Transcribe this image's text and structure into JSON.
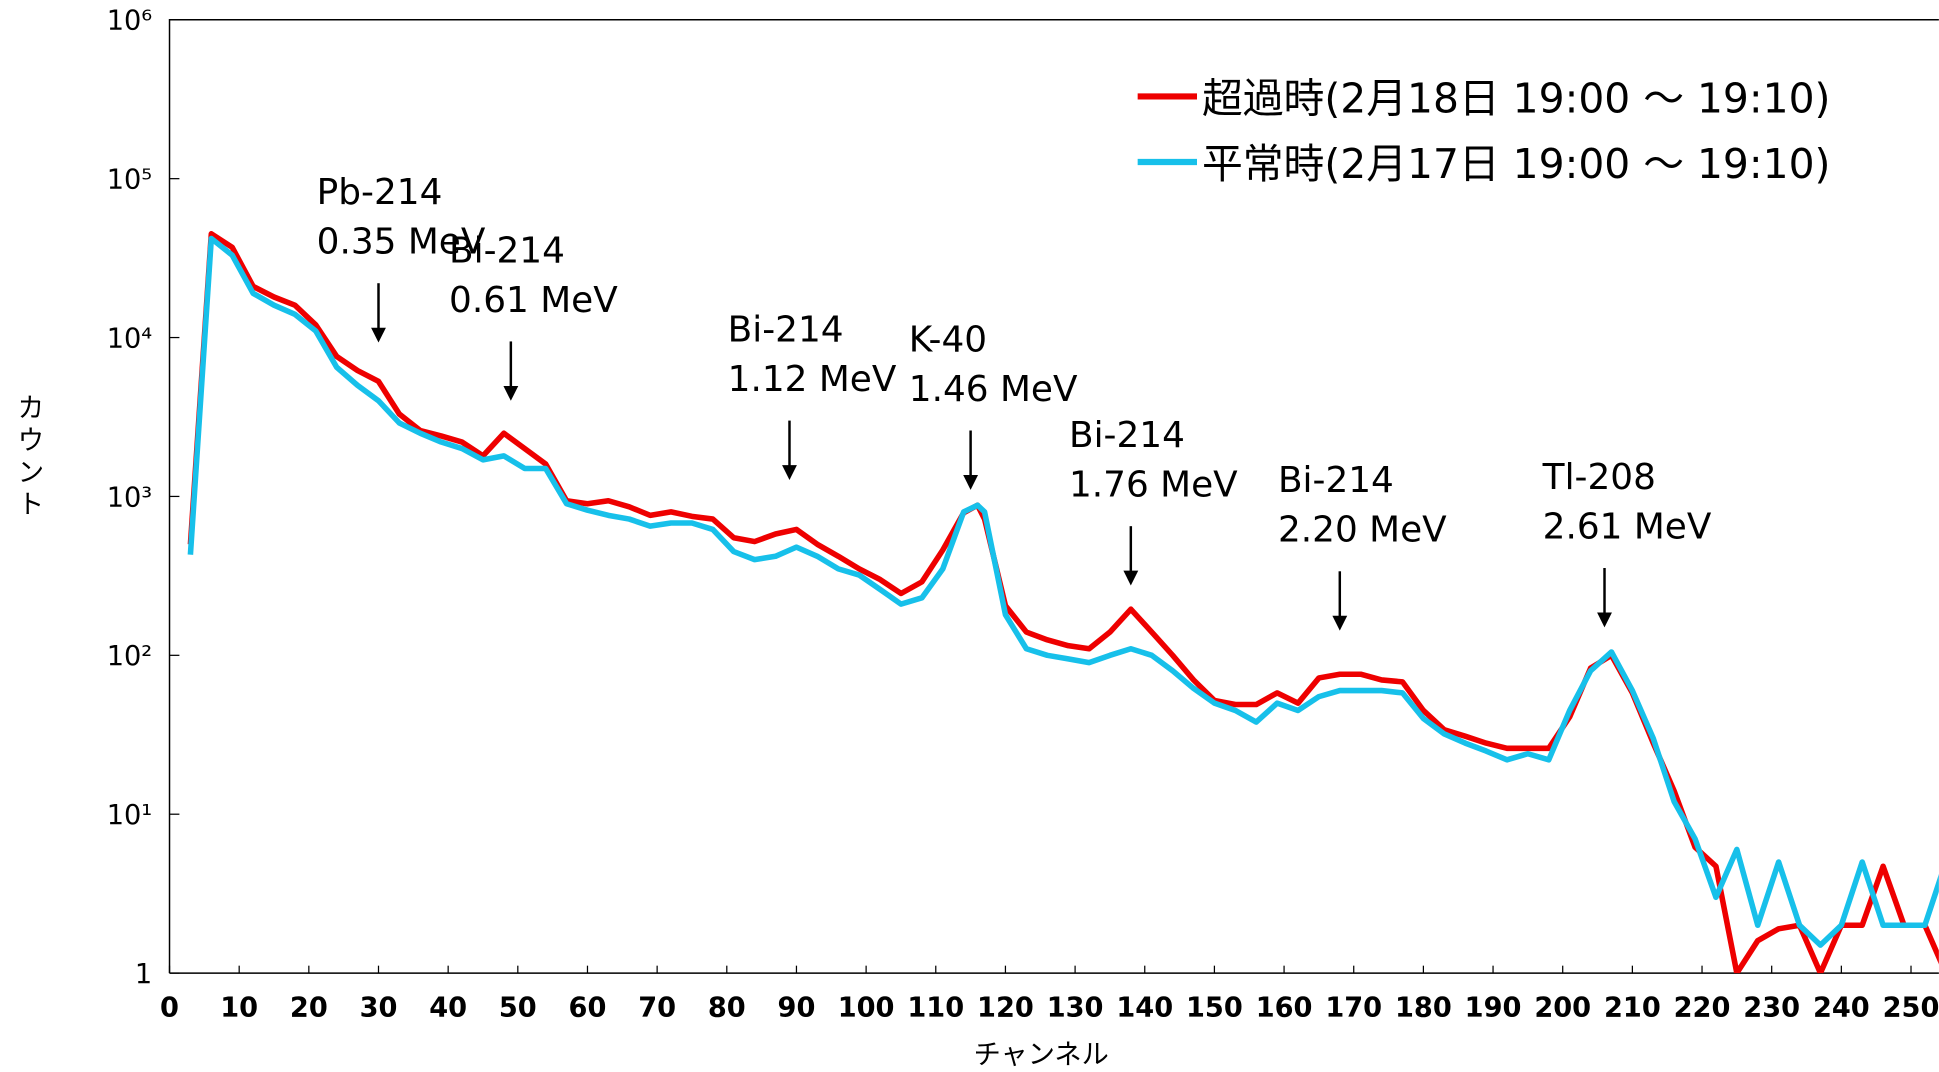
{
  "chart_data": {
    "type": "line",
    "xlabel": "チャンネル",
    "ylabel": "カウント",
    "x": [
      3,
      6,
      9,
      12,
      15,
      18,
      21,
      24,
      27,
      30,
      33,
      36,
      39,
      42,
      45,
      48,
      51,
      54,
      57,
      60,
      63,
      66,
      69,
      72,
      75,
      78,
      81,
      84,
      87,
      90,
      93,
      96,
      99,
      102,
      105,
      108,
      111,
      114,
      116,
      117,
      120,
      123,
      126,
      129,
      132,
      135,
      138,
      141,
      144,
      147,
      150,
      153,
      156,
      159,
      162,
      165,
      168,
      171,
      174,
      177,
      180,
      183,
      186,
      189,
      192,
      195,
      198,
      201,
      204,
      207,
      210,
      213,
      216,
      219,
      222,
      225,
      228,
      231,
      234,
      237,
      240,
      243,
      246,
      249,
      252,
      255
    ],
    "series": [
      {
        "name": "超過時(2月18日 19:00 ～ 19:10)",
        "color": "#ee0000",
        "values": [
          500,
          45000,
          37000,
          21000,
          18000,
          16000,
          12000,
          7600,
          6200,
          5300,
          3300,
          2600,
          2400,
          2200,
          1800,
          2500,
          2000,
          1600,
          940,
          900,
          940,
          860,
          760,
          800,
          750,
          720,
          550,
          520,
          580,
          620,
          500,
          420,
          350,
          300,
          245,
          290,
          460,
          790,
          880,
          720,
          205,
          140,
          125,
          115,
          110,
          140,
          195,
          140,
          100,
          70,
          52,
          49,
          49,
          58,
          50,
          72,
          76,
          76,
          70,
          68,
          45,
          34,
          31,
          28,
          26,
          26,
          26,
          41,
          83,
          100,
          58,
          28,
          14,
          6.2,
          4.7,
          1,
          1.6,
          1.9,
          2,
          1,
          2,
          2,
          4.7,
          2,
          2,
          1
        ]
      },
      {
        "name": "平常時(2月17日 19:00 ～ 19:10)",
        "color": "#17c0ea",
        "values": [
          430,
          42000,
          33000,
          19000,
          16000,
          14000,
          11000,
          6500,
          5000,
          4000,
          2900,
          2500,
          2200,
          2000,
          1700,
          1800,
          1500,
          1500,
          900,
          820,
          760,
          720,
          650,
          680,
          680,
          620,
          450,
          400,
          420,
          480,
          420,
          350,
          320,
          260,
          210,
          230,
          350,
          800,
          880,
          800,
          180,
          110,
          100,
          95,
          90,
          100,
          110,
          100,
          80,
          62,
          50,
          45,
          38,
          50,
          45,
          55,
          60,
          60,
          60,
          58,
          40,
          32,
          28,
          25,
          22,
          24,
          22,
          45,
          80,
          105,
          60,
          30,
          12,
          7,
          3,
          6,
          2,
          5,
          2,
          1.5,
          2,
          5,
          2,
          2,
          2,
          5
        ]
      }
    ],
    "xlim": [
      0,
      254
    ],
    "xticks": [
      0,
      10,
      20,
      30,
      40,
      50,
      60,
      70,
      80,
      90,
      100,
      110,
      120,
      130,
      140,
      150,
      160,
      170,
      180,
      190,
      200,
      210,
      220,
      230,
      240,
      250
    ],
    "ylim": [
      1,
      1000000
    ],
    "log_y": true,
    "yticks": [
      1,
      {
        "value": 10,
        "label": "10¹"
      },
      {
        "value": 100,
        "label": "10²"
      },
      {
        "value": 1000,
        "label": "10³"
      },
      {
        "value": 10000,
        "label": "10⁴"
      },
      {
        "value": 100000,
        "label": "10⁵"
      },
      {
        "value": 1000000,
        "label": "10⁶"
      }
    ],
    "legend": "upper right",
    "annotations": [
      {
        "lines": [
          "Pb-214",
          "0.35 MeV"
        ],
        "x": 30,
        "y": 9300
      },
      {
        "lines": [
          "Bi-214",
          "0.61 MeV"
        ],
        "x": 49,
        "y": 4000
      },
      {
        "lines": [
          "Bi-214",
          "1.12 MeV"
        ],
        "x": 89,
        "y": 1270
      },
      {
        "lines": [
          "K-40",
          "1.46 MeV"
        ],
        "x": 115,
        "y": 1100
      },
      {
        "lines": [
          "Bi-214",
          "1.76 MeV"
        ],
        "x": 138,
        "y": 275
      },
      {
        "lines": [
          "Bi-214",
          "2.20 MeV"
        ],
        "x": 168,
        "y": 143
      },
      {
        "lines": [
          "Tl-208",
          "2.61 MeV"
        ],
        "x": 206,
        "y": 150
      }
    ]
  }
}
